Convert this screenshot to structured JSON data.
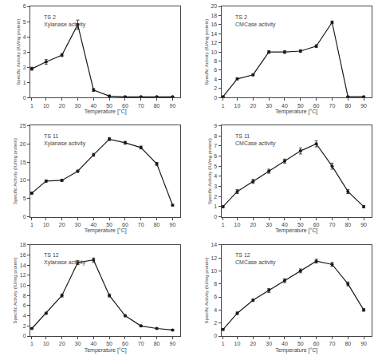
{
  "chart_data": [
    {
      "type": "line",
      "title": "TS 2\nXylanase activity",
      "x": [
        1,
        10,
        20,
        30,
        40,
        50,
        60,
        70,
        80,
        90
      ],
      "values": [
        1.9,
        2.35,
        2.8,
        4.8,
        0.5,
        0.1,
        0.05,
        0.05,
        0.05,
        0.05
      ],
      "yerr": [
        0.1,
        0.15,
        0.1,
        0.3,
        0.1,
        0.05,
        0.02,
        0.02,
        0.02,
        0.02
      ],
      "xlabel": "Temperature [°C]",
      "ylabel": "Specific Activity (IU/mg protein)",
      "xlim": [
        0,
        95
      ],
      "xticks": [
        1,
        10,
        20,
        30,
        40,
        50,
        60,
        70,
        80,
        90
      ],
      "ylim": [
        0,
        6
      ],
      "yticks": [
        0,
        1,
        2,
        3,
        4,
        5,
        6
      ],
      "color": "#1a1a1a",
      "marker": "circle",
      "grid": false
    },
    {
      "type": "line",
      "title": "TS 2\nCMCase activity",
      "x": [
        1,
        10,
        20,
        30,
        40,
        50,
        60,
        70,
        80,
        90
      ],
      "values": [
        0.2,
        4.1,
        5.0,
        10.0,
        10.0,
        10.2,
        11.3,
        16.5,
        0.2,
        0.2
      ],
      "yerr": [
        0.1,
        0.2,
        0.2,
        0.3,
        0.3,
        0.3,
        0.3,
        0.3,
        0.1,
        0.1
      ],
      "xlabel": "Temperature [°C]",
      "ylabel": "Specific Activity (IU/mg protein)",
      "xlim": [
        0,
        95
      ],
      "xticks": [
        1,
        10,
        20,
        30,
        40,
        50,
        60,
        70,
        80,
        90
      ],
      "ylim": [
        0,
        20
      ],
      "yticks": [
        0,
        2,
        4,
        6,
        8,
        10,
        12,
        14,
        16,
        18,
        20
      ],
      "color": "#1a1a1a",
      "marker": "circle",
      "grid": false
    },
    {
      "type": "line",
      "title": "TS 11\nXylanase activity",
      "x": [
        1,
        10,
        20,
        30,
        40,
        50,
        60,
        70,
        80,
        90
      ],
      "values": [
        6.5,
        9.8,
        10.0,
        12.5,
        17.0,
        21.3,
        20.3,
        19.0,
        14.5,
        3.2
      ],
      "yerr": [
        0.3,
        0.3,
        0.3,
        0.3,
        0.4,
        0.4,
        0.4,
        0.4,
        0.4,
        0.2
      ],
      "xlabel": "Temperature [°C]",
      "ylabel": "Specific Activity (IU/mg protein)",
      "xlim": [
        0,
        95
      ],
      "xticks": [
        1,
        10,
        20,
        30,
        40,
        50,
        60,
        70,
        80,
        90
      ],
      "ylim": [
        0,
        25
      ],
      "yticks": [
        0,
        5,
        10,
        15,
        20,
        25
      ],
      "color": "#1a1a1a",
      "marker": "circle",
      "grid": false
    },
    {
      "type": "line",
      "title": "TS 11\nCMCase activity",
      "x": [
        1,
        10,
        20,
        30,
        40,
        50,
        60,
        70,
        80,
        90
      ],
      "values": [
        1.0,
        2.5,
        3.5,
        4.5,
        5.5,
        6.5,
        7.2,
        5.0,
        2.5,
        1.0
      ],
      "yerr": [
        0.1,
        0.2,
        0.2,
        0.2,
        0.2,
        0.3,
        0.3,
        0.3,
        0.2,
        0.1
      ],
      "xlabel": "Temperature [°C]",
      "ylabel": "Specific Activity (IU/mg protein)",
      "xlim": [
        0,
        95
      ],
      "xticks": [
        1,
        10,
        20,
        30,
        40,
        50,
        60,
        70,
        80,
        90
      ],
      "ylim": [
        0,
        9
      ],
      "yticks": [
        0,
        1,
        2,
        3,
        4,
        5,
        6,
        7,
        8,
        9
      ],
      "color": "#1a1a1a",
      "marker": "circle",
      "grid": false
    },
    {
      "type": "line",
      "title": "TS 12\nXylanase activity",
      "x": [
        1,
        10,
        20,
        30,
        40,
        50,
        60,
        70,
        80,
        90
      ],
      "values": [
        1.5,
        4.5,
        8.0,
        14.5,
        15.0,
        8.0,
        4.0,
        2.0,
        1.5,
        1.2
      ],
      "yerr": [
        0.1,
        0.2,
        0.3,
        0.4,
        0.4,
        0.3,
        0.2,
        0.15,
        0.1,
        0.1
      ],
      "xlabel": "Temperature [°C]",
      "ylabel": "Specific Activity (IU/mg protein)",
      "xlim": [
        0,
        95
      ],
      "xticks": [
        1,
        10,
        20,
        30,
        40,
        50,
        60,
        70,
        80,
        90
      ],
      "ylim": [
        0,
        18
      ],
      "yticks": [
        0,
        2,
        4,
        6,
        8,
        10,
        12,
        14,
        16,
        18
      ],
      "color": "#1a1a1a",
      "marker": "circle",
      "grid": false
    },
    {
      "type": "line",
      "title": "TS 12\nCMCase activity",
      "x": [
        1,
        10,
        20,
        30,
        40,
        50,
        60,
        70,
        80,
        90
      ],
      "values": [
        1.0,
        3.5,
        5.5,
        7.0,
        8.5,
        10.0,
        11.5,
        11.0,
        8.0,
        4.0
      ],
      "yerr": [
        0.1,
        0.2,
        0.2,
        0.3,
        0.3,
        0.3,
        0.3,
        0.3,
        0.3,
        0.2
      ],
      "xlabel": "Temperature [°C]",
      "ylabel": "Specific Activity (IU/mg protein)",
      "xlim": [
        0,
        95
      ],
      "xticks": [
        1,
        10,
        20,
        30,
        40,
        50,
        60,
        70,
        80,
        90
      ],
      "ylim": [
        0,
        14
      ],
      "yticks": [
        0,
        2,
        4,
        6,
        8,
        10,
        12,
        14
      ],
      "color": "#1a1a1a",
      "marker": "circle",
      "grid": false
    }
  ]
}
